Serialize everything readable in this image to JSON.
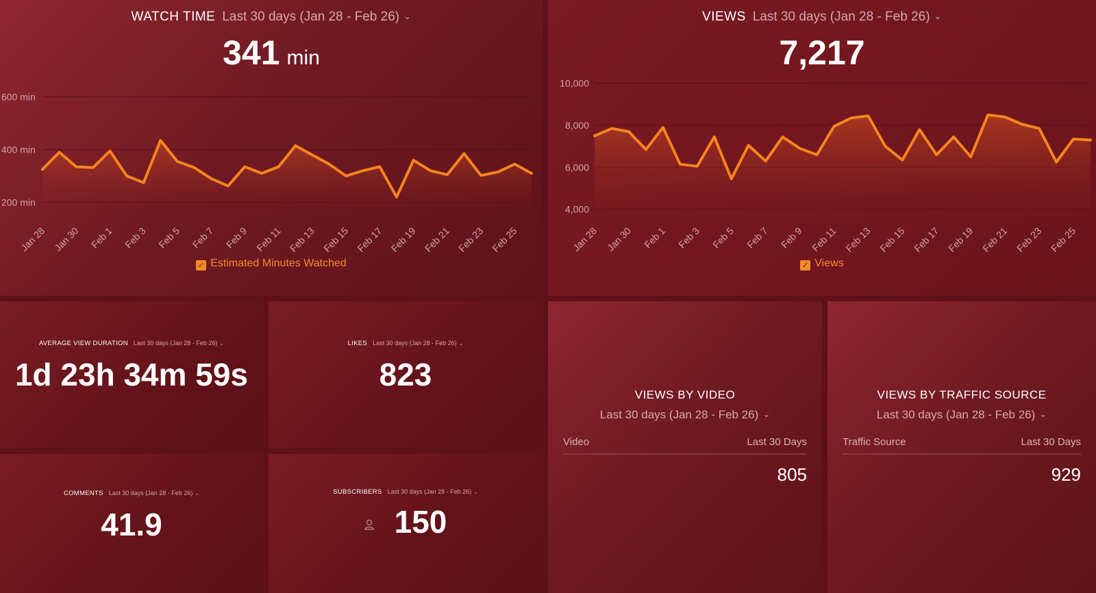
{
  "watch_time": {
    "title": "WATCH TIME",
    "range": "Last 30 days (Jan 28 - Feb 26)",
    "value": "341",
    "unit": "min",
    "legend": "Estimated Minutes Watched",
    "chart_data": {
      "type": "area",
      "x": [
        "Jan 28",
        "Jan 29",
        "Jan 30",
        "Jan 31",
        "Feb 1",
        "Feb 2",
        "Feb 3",
        "Feb 4",
        "Feb 5",
        "Feb 6",
        "Feb 7",
        "Feb 8",
        "Feb 9",
        "Feb 10",
        "Feb 11",
        "Feb 12",
        "Feb 13",
        "Feb 14",
        "Feb 15",
        "Feb 16",
        "Feb 17",
        "Feb 18",
        "Feb 19",
        "Feb 20",
        "Feb 21",
        "Feb 22",
        "Feb 23",
        "Feb 24",
        "Feb 25",
        "Feb 26"
      ],
      "x_tick_labels": [
        "Jan 28",
        "Jan 30",
        "Feb 1",
        "Feb 3",
        "Feb 5",
        "Feb 7",
        "Feb 9",
        "Feb 11",
        "Feb 13",
        "Feb 15",
        "Feb 17",
        "Feb 19",
        "Feb 21",
        "Feb 23",
        "Feb 25"
      ],
      "series": [
        {
          "name": "Estimated Minutes Watched",
          "values": [
            325,
            390,
            335,
            332,
            395,
            300,
            275,
            435,
            355,
            332,
            290,
            262,
            335,
            310,
            335,
            415,
            380,
            345,
            300,
            320,
            335,
            220,
            360,
            320,
            305,
            385,
            302,
            315,
            345,
            310
          ]
        }
      ],
      "y_ticks": [
        {
          "value": 200,
          "label": "200 min"
        },
        {
          "value": 400,
          "label": "400 min"
        },
        {
          "value": 600,
          "label": "600 min"
        }
      ],
      "ylim": [
        170,
        630
      ],
      "grid": true,
      "line_color": "#f7841f"
    }
  },
  "views": {
    "title": "VIEWS",
    "range": "Last 30 days (Jan 28 - Feb 26)",
    "value": "7,217",
    "legend": "Views",
    "chart_data": {
      "type": "area",
      "x": [
        "Jan 28",
        "Jan 29",
        "Jan 30",
        "Jan 31",
        "Feb 1",
        "Feb 2",
        "Feb 3",
        "Feb 4",
        "Feb 5",
        "Feb 6",
        "Feb 7",
        "Feb 8",
        "Feb 9",
        "Feb 10",
        "Feb 11",
        "Feb 12",
        "Feb 13",
        "Feb 14",
        "Feb 15",
        "Feb 16",
        "Feb 17",
        "Feb 18",
        "Feb 19",
        "Feb 20",
        "Feb 21",
        "Feb 22",
        "Feb 23",
        "Feb 24",
        "Feb 25",
        "Feb 26"
      ],
      "x_tick_labels": [
        "Jan 28",
        "Jan 30",
        "Feb 1",
        "Feb 3",
        "Feb 5",
        "Feb 7",
        "Feb 9",
        "Feb 11",
        "Feb 13",
        "Feb 15",
        "Feb 17",
        "Feb 19",
        "Feb 21",
        "Feb 23",
        "Feb 25"
      ],
      "series": [
        {
          "name": "Views",
          "values": [
            7500,
            7850,
            7700,
            6850,
            7900,
            6150,
            6050,
            7450,
            5450,
            7050,
            6300,
            7450,
            6900,
            6600,
            7950,
            8350,
            8450,
            7000,
            6350,
            7800,
            6600,
            7450,
            6500,
            8500,
            8400,
            8050,
            7850,
            6250,
            7350,
            7300
          ]
        }
      ],
      "y_ticks": [
        {
          "value": 4000,
          "label": "4,000"
        },
        {
          "value": 6000,
          "label": "6,000"
        },
        {
          "value": 8000,
          "label": "8,000"
        },
        {
          "value": 10000,
          "label": "10,000"
        }
      ],
      "ylim": [
        3600,
        10250
      ],
      "grid": true,
      "line_color": "#f7841f"
    }
  },
  "avg_view_duration": {
    "title": "AVERAGE VIEW DURATION",
    "range": "Last 30 days (Jan 28 - Feb 26)",
    "value": "1d 23h 34m 59s"
  },
  "likes": {
    "title": "LIKES",
    "range": "Last 30 days (Jan 28 - Feb 26)",
    "value": "823"
  },
  "comments": {
    "title": "COMMENTS",
    "range": "Last 30 days (Jan 28 - Feb 26)",
    "value": "41.9"
  },
  "subscribers": {
    "title": "SUBSCRIBERS",
    "range": "Last 30 days (Jan 28 - Feb 26)",
    "value": "150",
    "icon": "user-icon"
  },
  "views_by_video": {
    "title": "VIEWS BY VIDEO",
    "range": "Last 30 days (Jan 28 - Feb 26)",
    "col1": "Video",
    "col2": "Last 30 Days",
    "value": "805"
  },
  "views_by_traffic": {
    "title": "VIEWS BY TRAFFIC SOURCE",
    "range": "Last 30 days (Jan 28 - Feb 26)",
    "col1": "Traffic Source",
    "col2": "Last 30 Days",
    "value": "929"
  }
}
